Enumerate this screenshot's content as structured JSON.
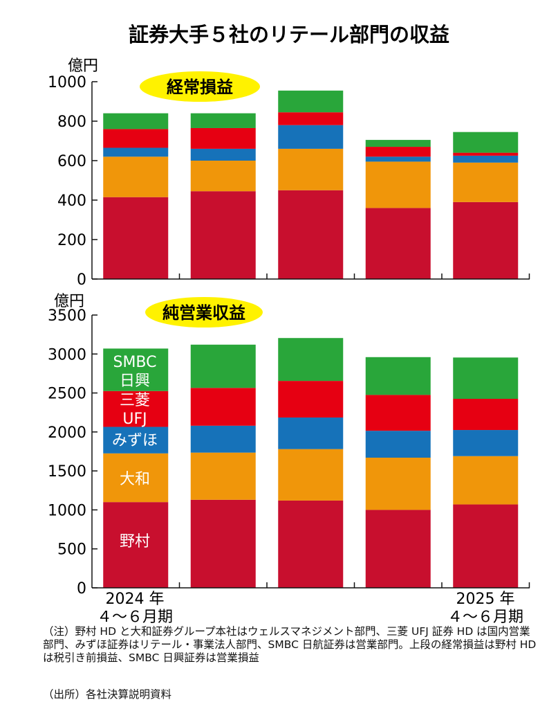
{
  "title": "証券大手５社のリテール部門の収益",
  "colors": {
    "野村": "#c80f2e",
    "大和": "#f0960a",
    "みずほ": "#1672b9",
    "三菱UFJ": "#e60012",
    "SMBC日興": "#29a63a",
    "badge": "#fff200",
    "axis": "#111111"
  },
  "legend_labels": {
    "smbc_line1": "SMBC",
    "smbc_line2": "日興",
    "mufg_line1": "三菱",
    "mufg_line2": "UFJ",
    "mizuho": "みずほ",
    "daiwa": "大和",
    "nomura": "野村"
  },
  "x_labels": {
    "first_line1": "2024 年",
    "first_line2": "４～６月期",
    "last_line1": "2025 年",
    "last_line2": "４～６月期"
  },
  "chart_data": [
    {
      "type": "bar",
      "stacked": true,
      "title": "経常損益",
      "ylabel": "億円",
      "ylim": [
        0,
        1000
      ],
      "yticks": [
        "0",
        "200",
        "400",
        "600",
        "800",
        "1000"
      ],
      "categories": [
        "2024年4～6月期",
        "",
        "",
        "",
        "2025年4～6月期"
      ],
      "series": [
        {
          "name": "野村",
          "values": [
            415,
            445,
            450,
            360,
            390
          ]
        },
        {
          "name": "大和",
          "values": [
            205,
            155,
            210,
            235,
            200
          ]
        },
        {
          "name": "みずほ",
          "values": [
            45,
            60,
            120,
            25,
            35
          ]
        },
        {
          "name": "三菱UFJ",
          "values": [
            95,
            105,
            65,
            50,
            15
          ]
        },
        {
          "name": "SMBC日興",
          "values": [
            80,
            75,
            110,
            35,
            105
          ]
        }
      ]
    },
    {
      "type": "bar",
      "stacked": true,
      "title": "純営業収益",
      "ylabel": "億円",
      "ylim": [
        0,
        3500
      ],
      "yticks": [
        "0",
        "500",
        "1000",
        "1500",
        "2000",
        "2500",
        "3000",
        "3500"
      ],
      "categories": [
        "2024年4～6月期",
        "",
        "",
        "",
        "2025年4～6月期"
      ],
      "series": [
        {
          "name": "野村",
          "values": [
            1100,
            1130,
            1120,
            1000,
            1070
          ]
        },
        {
          "name": "大和",
          "values": [
            625,
            605,
            660,
            670,
            620
          ]
        },
        {
          "name": "みずほ",
          "values": [
            340,
            345,
            405,
            345,
            335
          ]
        },
        {
          "name": "三菱UFJ",
          "values": [
            460,
            485,
            470,
            460,
            400
          ]
        },
        {
          "name": "SMBC日興",
          "values": [
            545,
            555,
            550,
            485,
            530
          ]
        }
      ]
    }
  ],
  "notes": {
    "main": "（注）野村 HD と大和証券グループ本社はウェルスマネジメント部門、三菱 UFJ 証券 HD は国内営業部門、みずほ証券はリテール・事業法人部門、SMBC 日航証券は営業部門。上段の経常損益は野村 HD は税引き前損益、SMBC 日興証券は営業損益",
    "source": "（出所）各社決算説明資料"
  }
}
